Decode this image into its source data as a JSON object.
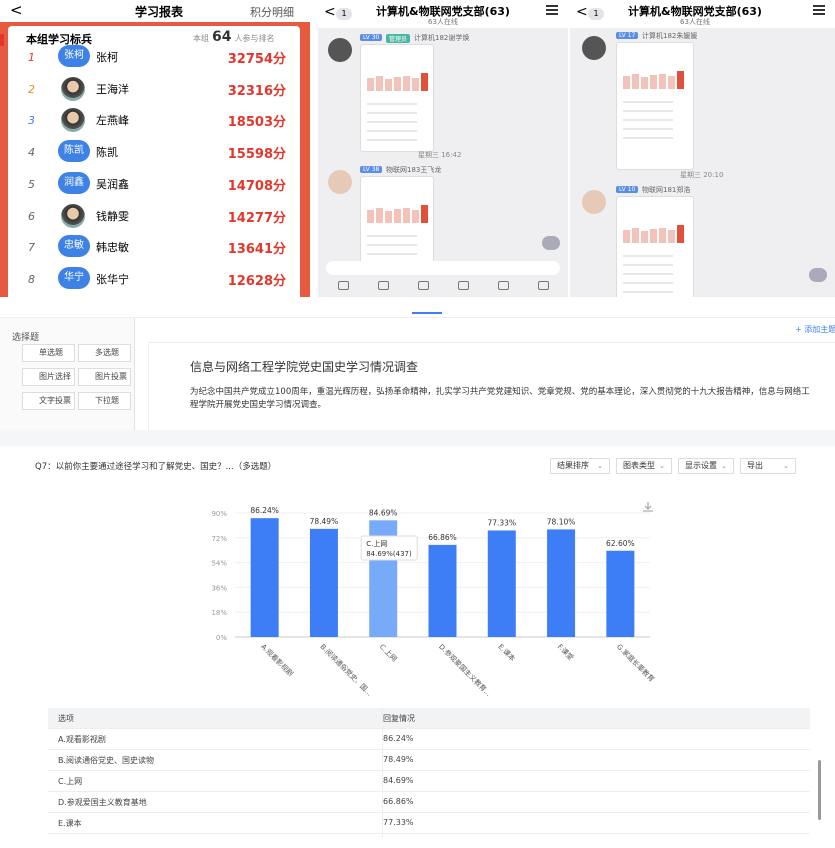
{
  "leaderboard": {
    "back": "<",
    "title": "学习报表",
    "link": "积分明细",
    "heading": "本组学习标兵",
    "rank_prefix": "本组",
    "rank_count": "64",
    "rank_suffix": "人参与排名",
    "rows": [
      {
        "rank": "1",
        "avatar": "张柯",
        "name": "张柯",
        "score": "32754分"
      },
      {
        "rank": "2",
        "name": "王海洋",
        "score": "32316分"
      },
      {
        "rank": "3",
        "name": "左燕峰",
        "score": "18503分"
      },
      {
        "rank": "4",
        "avatar": "陈凯",
        "name": "陈凯",
        "score": "15598分"
      },
      {
        "rank": "5",
        "avatar": "润鑫",
        "name": "吴润鑫",
        "score": "14708分"
      },
      {
        "rank": "6",
        "name": "钱静雯",
        "score": "14277分"
      },
      {
        "rank": "7",
        "avatar": "忠敏",
        "name": "韩忠敏",
        "score": "13641分"
      },
      {
        "rank": "8",
        "avatar": "华宁",
        "name": "张华宁",
        "score": "12628分"
      }
    ]
  },
  "chats": [
    {
      "back": "<",
      "badge": "1",
      "title": "计算机&物联网党支部(63)",
      "online": "63人在线",
      "messages": [
        {
          "level": "LV 30",
          "role": "管理员",
          "sender": "计算机182谢学焕"
        },
        {
          "time": "星期三 16:42",
          "level": "LV 38",
          "sender": "物联网183王飞龙"
        }
      ]
    },
    {
      "back": "<",
      "badge": "1",
      "title": "计算机&物联网党支部(63)",
      "online": "63人在线",
      "messages": [
        {
          "level": "LV 17",
          "sender": "计算机182朱媛媛"
        },
        {
          "time": "星期三 20:10",
          "level": "LV 10",
          "sender": "物联网181郑浩"
        }
      ]
    }
  ],
  "editor": {
    "section": "选择题",
    "buttons": [
      "单选题",
      "多选题",
      "图片选择",
      "图片投票",
      "文字投票",
      "下拉题"
    ],
    "add_link": "+ 添加主题标",
    "title": "信息与网络工程学院党史国史学习情况调查",
    "description": "为纪念中国共产党成立100周年，重温光辉历程，弘扬革命精神，扎实学习共产党党建知识、党章党规、党的基本理论，深入贯彻党的十九大报告精神，信息与网络工程学院开展党史国史学习情况调查。"
  },
  "chart_data": {
    "type": "bar",
    "question": "Q7：以前你主要通过途径学习和了解党史、国史？...（多选题）",
    "controls": [
      "结果排序",
      "图表类型",
      "显示设置",
      "导出"
    ],
    "categories": [
      "A.观看影视剧",
      "B.阅读通俗党史、国...",
      "C.上网",
      "D.参观爱国主义教育...",
      "E.课本",
      "F.课堂",
      "G.家庭长辈教育"
    ],
    "values": [
      86.24,
      78.49,
      84.69,
      66.86,
      77.33,
      78.1,
      62.6
    ],
    "value_labels": [
      "86.24%",
      "78.49%",
      "84.69%",
      "66.86%",
      "77.33%",
      "78.10%",
      "62.60%"
    ],
    "color": "#3d7ef7",
    "highlight_color": "#77aaf9",
    "highlight_index": 2,
    "tooltip": {
      "title": "C.上网",
      "text": "84.69%(437)"
    },
    "ylim": [
      0,
      90
    ],
    "yticks": [
      {
        "value": 0,
        "label": "0%"
      },
      {
        "value": 18,
        "label": "18%"
      },
      {
        "value": 36,
        "label": "36%"
      },
      {
        "value": 54,
        "label": "54%"
      },
      {
        "value": 72,
        "label": "72%"
      },
      {
        "value": 90,
        "label": "90%"
      }
    ],
    "grid": true
  },
  "table": {
    "header": [
      "选项",
      "回复情况"
    ],
    "rows": [
      [
        "A.观看影视剧",
        "86.24%"
      ],
      [
        "B.阅读通俗党史、国史读物",
        "78.49%"
      ],
      [
        "C.上网",
        "84.69%"
      ],
      [
        "D.参观爱国主义教育基地",
        "66.86%"
      ],
      [
        "E.课本",
        "77.33%"
      ]
    ]
  }
}
